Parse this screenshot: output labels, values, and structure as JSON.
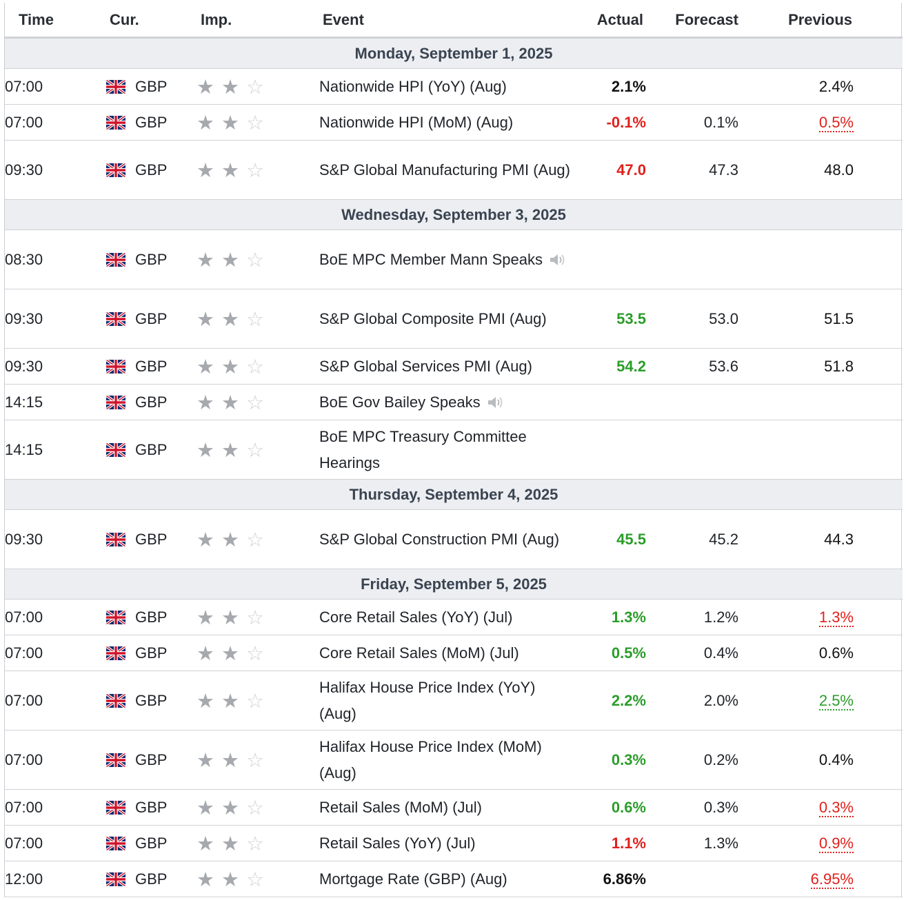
{
  "headers": {
    "time": "Time",
    "currency": "Cur.",
    "importance": "Imp.",
    "event": "Event",
    "actual": "Actual",
    "forecast": "Forecast",
    "previous": "Previous"
  },
  "colors": {
    "better": "#2a9d2a",
    "worse": "#e0201b",
    "day_header_bg": "#eceef1",
    "border": "#cfd2d6"
  },
  "importance_scale": {
    "filled_stars": 2,
    "total_stars": 3
  },
  "days": [
    {
      "label": "Monday, September 1, 2025",
      "events": [
        {
          "time": "07:00",
          "currency": "GBP",
          "event": "Nationwide HPI (YoY) (Aug)",
          "actual": "2.1%",
          "actual_status": "neutral",
          "forecast": "",
          "previous": "2.4%",
          "previous_status": "neutral",
          "lines": 1
        },
        {
          "time": "07:00",
          "currency": "GBP",
          "event": "Nationwide HPI (MoM) (Aug)",
          "actual": "-0.1%",
          "actual_status": "worse",
          "forecast": "0.1%",
          "previous": "0.5%",
          "previous_status": "revised_down",
          "lines": 1
        },
        {
          "time": "09:30",
          "currency": "GBP",
          "event": "S&P Global Manufacturing PMI (Aug)",
          "actual": "47.0",
          "actual_status": "worse",
          "forecast": "47.3",
          "previous": "48.0",
          "previous_status": "neutral",
          "lines": 2
        }
      ]
    },
    {
      "label": "Wednesday, September 3, 2025",
      "events": [
        {
          "time": "08:30",
          "currency": "GBP",
          "event": "BoE MPC Member Mann Speaks",
          "speech": true,
          "actual": "",
          "actual_status": "neutral",
          "forecast": "",
          "previous": "",
          "previous_status": "neutral",
          "lines": 2
        },
        {
          "time": "09:30",
          "currency": "GBP",
          "event": "S&P Global Composite PMI (Aug)",
          "actual": "53.5",
          "actual_status": "better",
          "forecast": "53.0",
          "previous": "51.5",
          "previous_status": "neutral",
          "lines": 2
        },
        {
          "time": "09:30",
          "currency": "GBP",
          "event": "S&P Global Services PMI (Aug)",
          "actual": "54.2",
          "actual_status": "better",
          "forecast": "53.6",
          "previous": "51.8",
          "previous_status": "neutral",
          "lines": 1
        },
        {
          "time": "14:15",
          "currency": "GBP",
          "event": "BoE Gov Bailey Speaks",
          "speech": true,
          "actual": "",
          "actual_status": "neutral",
          "forecast": "",
          "previous": "",
          "previous_status": "neutral",
          "lines": 1
        },
        {
          "time": "14:15",
          "currency": "GBP",
          "event": "BoE MPC Treasury Committee Hearings",
          "actual": "",
          "actual_status": "neutral",
          "forecast": "",
          "previous": "",
          "previous_status": "neutral",
          "lines": 2
        }
      ]
    },
    {
      "label": "Thursday, September 4, 2025",
      "events": [
        {
          "time": "09:30",
          "currency": "GBP",
          "event": "S&P Global Construction PMI (Aug)",
          "actual": "45.5",
          "actual_status": "better",
          "forecast": "45.2",
          "previous": "44.3",
          "previous_status": "neutral",
          "lines": 2
        }
      ]
    },
    {
      "label": "Friday, September 5, 2025",
      "events": [
        {
          "time": "07:00",
          "currency": "GBP",
          "event": "Core Retail Sales (YoY) (Jul)",
          "actual": "1.3%",
          "actual_status": "better",
          "forecast": "1.2%",
          "previous": "1.3%",
          "previous_status": "revised_down",
          "lines": 1
        },
        {
          "time": "07:00",
          "currency": "GBP",
          "event": "Core Retail Sales (MoM) (Jul)",
          "actual": "0.5%",
          "actual_status": "better",
          "forecast": "0.4%",
          "previous": "0.6%",
          "previous_status": "neutral",
          "lines": 1
        },
        {
          "time": "07:00",
          "currency": "GBP",
          "event": "Halifax House Price Index (YoY) (Aug)",
          "actual": "2.2%",
          "actual_status": "better",
          "forecast": "2.0%",
          "previous": "2.5%",
          "previous_status": "revised_up",
          "lines": 2
        },
        {
          "time": "07:00",
          "currency": "GBP",
          "event": "Halifax House Price Index (MoM) (Aug)",
          "actual": "0.3%",
          "actual_status": "better",
          "forecast": "0.2%",
          "previous": "0.4%",
          "previous_status": "neutral",
          "lines": 2
        },
        {
          "time": "07:00",
          "currency": "GBP",
          "event": "Retail Sales (MoM) (Jul)",
          "actual": "0.6%",
          "actual_status": "better",
          "forecast": "0.3%",
          "previous": "0.3%",
          "previous_status": "revised_down",
          "lines": 1
        },
        {
          "time": "07:00",
          "currency": "GBP",
          "event": "Retail Sales (YoY) (Jul)",
          "actual": "1.1%",
          "actual_status": "worse",
          "forecast": "1.3%",
          "previous": "0.9%",
          "previous_status": "revised_down",
          "lines": 1
        },
        {
          "time": "12:00",
          "currency": "GBP",
          "event": "Mortgage Rate (GBP) (Aug)",
          "actual": "6.86%",
          "actual_status": "neutral",
          "forecast": "",
          "previous": "6.95%",
          "previous_status": "revised_down",
          "lines": 1
        }
      ]
    }
  ]
}
